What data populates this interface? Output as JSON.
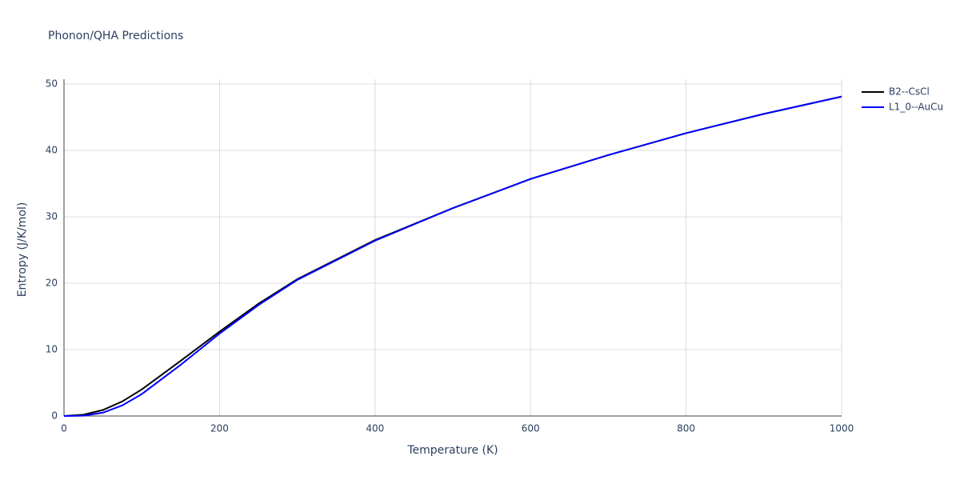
{
  "chart_data": {
    "type": "line",
    "title": "Phonon/QHA Predictions",
    "xlabel": "Temperature (K)",
    "ylabel": "Entropy (J/K/mol)",
    "x": [
      0,
      25,
      50,
      75,
      100,
      150,
      200,
      250,
      300,
      400,
      500,
      600,
      700,
      800,
      900,
      1000
    ],
    "series": [
      {
        "name": "B2--CsCl",
        "color": "#000000",
        "values": [
          0,
          0.2,
          0.9,
          2.2,
          4.0,
          8.3,
          12.7,
          16.9,
          20.6,
          26.5,
          31.3,
          35.7,
          39.3,
          42.6,
          45.5,
          48.1
        ]
      },
      {
        "name": "L1_0--AuCu",
        "color": "#0000ff",
        "values": [
          0,
          0.05,
          0.5,
          1.6,
          3.3,
          7.7,
          12.4,
          16.7,
          20.5,
          26.4,
          31.3,
          35.7,
          39.3,
          42.6,
          45.5,
          48.1
        ]
      }
    ],
    "xlim": [
      0,
      1000
    ],
    "xticks": [
      0,
      200,
      400,
      600,
      800,
      1000
    ],
    "ylim": [
      0,
      50
    ],
    "yticks": [
      0,
      10,
      20,
      30,
      40,
      50
    ],
    "grid": true,
    "legend": "outside-right"
  }
}
